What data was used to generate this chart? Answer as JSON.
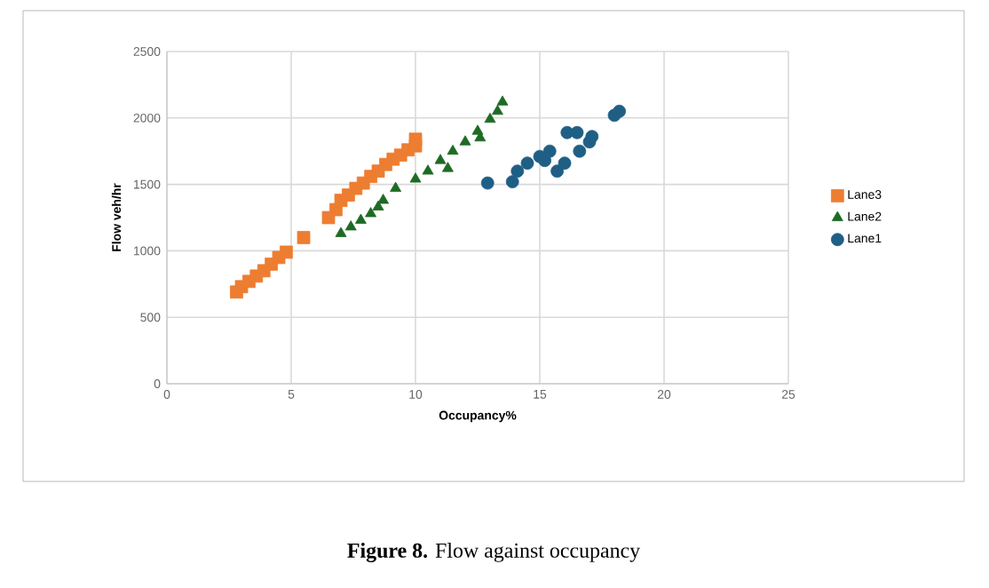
{
  "chart_data": {
    "type": "scatter",
    "xlabel": "Occupancy%",
    "ylabel": "Flow veh/hr",
    "xlim": [
      0,
      25
    ],
    "ylim": [
      0,
      2500
    ],
    "xticks": [
      0,
      5,
      10,
      15,
      20,
      25
    ],
    "yticks": [
      0,
      500,
      1000,
      1500,
      2000,
      2500
    ],
    "grid": true,
    "legend": "right",
    "annotations": [
      "**Figure 8.** Flow against occupancy"
    ],
    "series": [
      {
        "name": "Lane3",
        "color": "#ed7d31",
        "marker": "square",
        "x": [
          2.8,
          3.0,
          3.3,
          3.6,
          3.9,
          4.2,
          4.5,
          4.8,
          5.5,
          6.5,
          6.8,
          7.0,
          7.3,
          7.6,
          7.9,
          8.2,
          8.5,
          8.8,
          9.1,
          9.4,
          9.7,
          10.0,
          10.0
        ],
        "values": [
          690,
          730,
          770,
          810,
          850,
          900,
          950,
          990,
          1100,
          1250,
          1310,
          1380,
          1420,
          1470,
          1510,
          1560,
          1600,
          1650,
          1690,
          1720,
          1760,
          1840,
          1790
        ]
      },
      {
        "name": "Lane2",
        "color": "#1e6b24",
        "marker": "triangle",
        "x": [
          7.0,
          7.4,
          7.8,
          8.2,
          8.5,
          8.7,
          9.2,
          10.0,
          10.5,
          11.0,
          11.3,
          11.5,
          12.0,
          12.5,
          12.6,
          13.0,
          13.3,
          13.5
        ],
        "values": [
          1130,
          1180,
          1230,
          1280,
          1330,
          1380,
          1470,
          1540,
          1600,
          1680,
          1620,
          1750,
          1820,
          1900,
          1850,
          1990,
          2050,
          2120
        ]
      },
      {
        "name": "Lane1",
        "color": "#1f5f85",
        "marker": "circle",
        "x": [
          12.9,
          13.9,
          14.1,
          14.5,
          15.0,
          15.2,
          15.4,
          15.7,
          16.0,
          16.1,
          16.5,
          16.6,
          17.0,
          17.1,
          18.0,
          18.2
        ],
        "values": [
          1510,
          1520,
          1600,
          1660,
          1710,
          1680,
          1750,
          1600,
          1660,
          1890,
          1890,
          1750,
          1820,
          1860,
          2020,
          2050
        ]
      }
    ]
  }
}
